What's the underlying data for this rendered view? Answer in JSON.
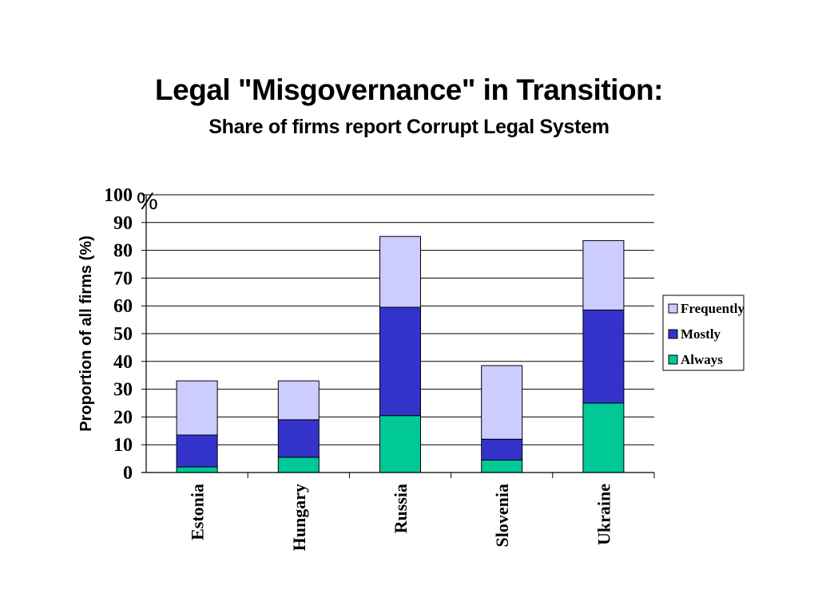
{
  "chart_data": {
    "type": "bar",
    "stacked": true,
    "title": "Legal \"Misgovernance\" in Transition:",
    "subtitle": "Share of firms report Corrupt Legal System",
    "ylabel": "Proportion of all firms (%)",
    "yunit": "%",
    "ylim": [
      0,
      100
    ],
    "yticks": [
      0,
      10,
      20,
      30,
      40,
      50,
      60,
      70,
      80,
      90,
      100
    ],
    "grid": true,
    "legend_position": "right",
    "categories": [
      "Estonia",
      "Hungary",
      "Russia",
      "Slovenia",
      "Ukraine"
    ],
    "series": [
      {
        "name": "Always",
        "color": "#00c896",
        "values": [
          2,
          5.5,
          20.5,
          4.5,
          25
        ]
      },
      {
        "name": "Mostly",
        "color": "#3333cc",
        "values": [
          11.5,
          13.5,
          39,
          7.5,
          33.5
        ]
      },
      {
        "name": "Frequently",
        "color": "#ccccff",
        "values": [
          19.5,
          14,
          25.5,
          26.5,
          25
        ]
      }
    ]
  }
}
